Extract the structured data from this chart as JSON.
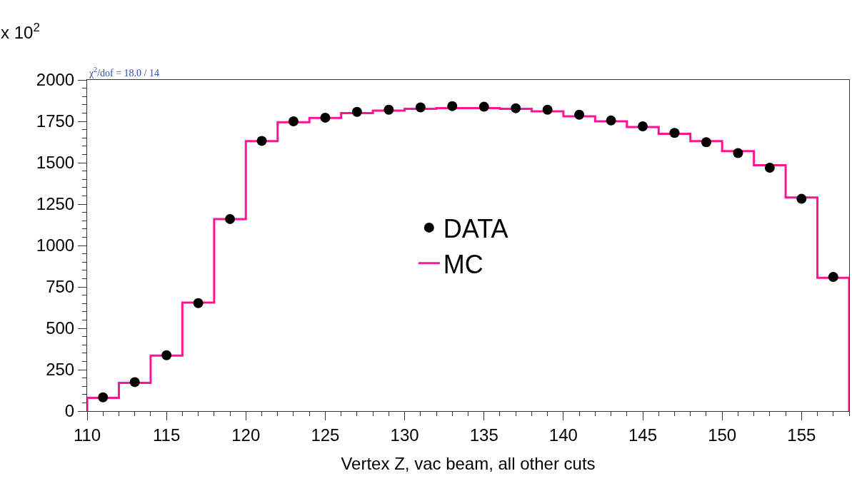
{
  "chart_data": {
    "type": "histogram",
    "xlabel": "Vertex Z, vac beam, all other cuts",
    "annotations": [
      "x 10$^{2}$",
      "χ$^{2}$/dof = 18.0 / 14"
    ],
    "bins": [
      110,
      112,
      114,
      116,
      118,
      120,
      122,
      124,
      126,
      128,
      130,
      132,
      134,
      136,
      138,
      140,
      142,
      144,
      146,
      148,
      150,
      152,
      154,
      156,
      158
    ],
    "series": [
      {
        "name": "MC",
        "color": "#ff1493",
        "values": [
          80,
          170,
          335,
          655,
          1160,
          1630,
          1745,
          1770,
          1800,
          1815,
          1825,
          1830,
          1830,
          1825,
          1810,
          1780,
          1750,
          1715,
          1675,
          1630,
          1570,
          1485,
          1290,
          805
        ]
      },
      {
        "name": "DATA",
        "type": "scatter",
        "color": "#000000",
        "x": [
          111,
          113,
          115,
          117,
          119,
          121,
          123,
          125,
          127,
          129,
          131,
          133,
          135,
          137,
          139,
          141,
          143,
          145,
          147,
          149,
          151,
          153,
          155,
          157
        ],
        "values": [
          83,
          175,
          337,
          652,
          1160,
          1632,
          1750,
          1772,
          1807,
          1820,
          1834,
          1842,
          1838,
          1829,
          1820,
          1790,
          1755,
          1720,
          1680,
          1624,
          1558,
          1470,
          1282,
          810
        ]
      }
    ],
    "xlim": [
      110,
      158
    ],
    "xticks": [
      110,
      115,
      120,
      125,
      130,
      135,
      140,
      145,
      150,
      155
    ],
    "ylim": [
      0,
      2000
    ],
    "yticks": [
      0,
      250,
      500,
      750,
      1000,
      1250,
      1500,
      1750,
      2000
    ],
    "grid": false,
    "legend": "center",
    "marker": "circle"
  }
}
